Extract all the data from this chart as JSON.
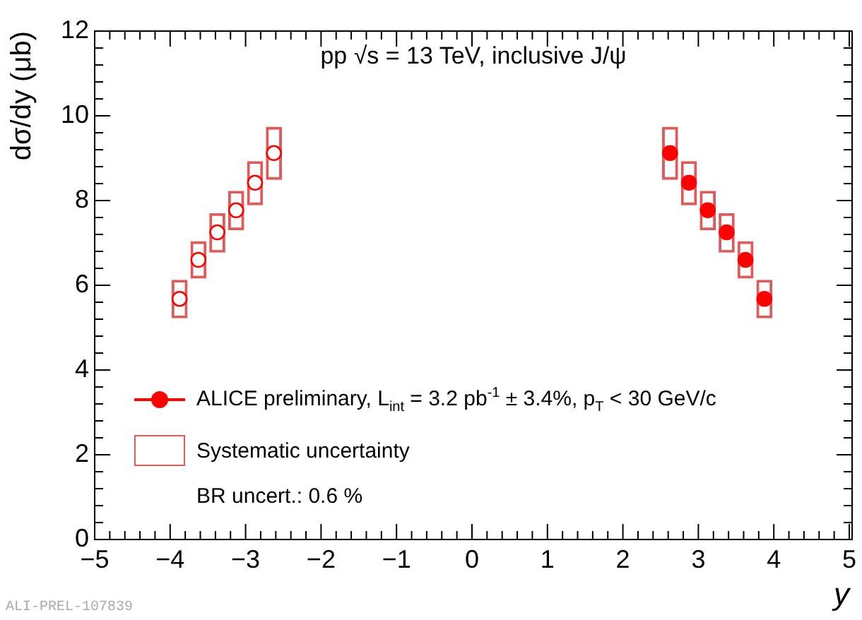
{
  "chart_data": {
    "type": "scatter",
    "title": "pp √s = 13 TeV, inclusive J/ψ",
    "xlabel": "y",
    "ylabel": "dσ/dy (μb)",
    "annotations": [
      "BR uncert.: 0.6 %",
      "ALI-PREL-107839"
    ],
    "xlim": [
      -5,
      5
    ],
    "ylim": [
      0,
      12
    ],
    "xticks": [
      -5,
      {
        "value": -4.8,
        "label": null
      },
      {
        "value": -4.6,
        "label": null
      },
      {
        "value": -4.4,
        "label": null
      },
      {
        "value": -4.2,
        "label": null
      },
      -4,
      {
        "value": -3.8,
        "label": null
      },
      {
        "value": -3.6,
        "label": null
      },
      {
        "value": -3.4,
        "label": null
      },
      {
        "value": -3.2,
        "label": null
      },
      -3,
      {
        "value": -2.8,
        "label": null
      },
      {
        "value": -2.6,
        "label": null
      },
      {
        "value": -2.4,
        "label": null
      },
      {
        "value": -2.2,
        "label": null
      },
      -2,
      {
        "value": -1.8,
        "label": null
      },
      {
        "value": -1.6,
        "label": null
      },
      {
        "value": -1.4,
        "label": null
      },
      {
        "value": -1.2,
        "label": null
      },
      -1,
      {
        "value": -0.8,
        "label": null
      },
      {
        "value": -0.6,
        "label": null
      },
      {
        "value": -0.4,
        "label": null
      },
      {
        "value": -0.2,
        "label": null
      },
      0,
      {
        "value": 0.2,
        "label": null
      },
      {
        "value": 0.4,
        "label": null
      },
      {
        "value": 0.6,
        "label": null
      },
      {
        "value": 0.8,
        "label": null
      },
      1,
      {
        "value": 1.2,
        "label": null
      },
      {
        "value": 1.4,
        "label": null
      },
      {
        "value": 1.6,
        "label": null
      },
      {
        "value": 1.8,
        "label": null
      },
      2,
      {
        "value": 2.2,
        "label": null
      },
      {
        "value": 2.4,
        "label": null
      },
      {
        "value": 2.6,
        "label": null
      },
      {
        "value": 2.8,
        "label": null
      },
      3,
      {
        "value": 3.2,
        "label": null
      },
      {
        "value": 3.4,
        "label": null
      },
      {
        "value": 3.6,
        "label": null
      },
      {
        "value": 3.8,
        "label": null
      },
      4,
      {
        "value": 4.2,
        "label": null
      },
      {
        "value": 4.4,
        "label": null
      },
      {
        "value": 4.6,
        "label": null
      },
      {
        "value": 4.8,
        "label": null
      },
      5
    ],
    "yticks": [
      0,
      {
        "value": 0.4,
        "label": null
      },
      {
        "value": 0.8,
        "label": null
      },
      {
        "value": 1.2,
        "label": null
      },
      {
        "value": 1.6,
        "label": null
      },
      2,
      {
        "value": 2.4,
        "label": null
      },
      {
        "value": 2.8,
        "label": null
      },
      {
        "value": 3.2,
        "label": null
      },
      {
        "value": 3.6,
        "label": null
      },
      4,
      {
        "value": 4.4,
        "label": null
      },
      {
        "value": 4.8,
        "label": null
      },
      {
        "value": 5.2,
        "label": null
      },
      {
        "value": 5.6,
        "label": null
      },
      6,
      {
        "value": 6.4,
        "label": null
      },
      {
        "value": 6.8,
        "label": null
      },
      {
        "value": 7.2,
        "label": null
      },
      {
        "value": 7.6,
        "label": null
      },
      8,
      {
        "value": 8.4,
        "label": null
      },
      {
        "value": 8.8,
        "label": null
      },
      {
        "value": 9.2,
        "label": null
      },
      {
        "value": 9.6,
        "label": null
      },
      10,
      {
        "value": 10.4,
        "label": null
      },
      {
        "value": 10.8,
        "label": null
      },
      {
        "value": 11.2,
        "label": null
      },
      {
        "value": 11.6,
        "label": null
      },
      12
    ],
    "grid": false,
    "legend": "bottom left",
    "marker": "circle",
    "series": [
      {
        "name": "Systematic uncertainty",
        "type": "bar",
        "color": "#e05a5a",
        "x": [
          -3.875,
          -3.625,
          -3.375,
          -3.125,
          -2.875,
          -2.625,
          2.625,
          2.875,
          3.125,
          3.375,
          3.625,
          3.875
        ],
        "base": [
          5.23,
          6.17,
          6.78,
          7.31,
          7.9,
          8.5,
          8.5,
          7.9,
          7.31,
          6.78,
          6.17,
          5.23
        ],
        "values": [
          0.89,
          0.86,
          0.91,
          0.91,
          1.02,
          1.23,
          1.23,
          1.02,
          0.91,
          0.91,
          0.86,
          0.89
        ]
      },
      {
        "color": "#ff0000",
        "x": [
          -3.875,
          -3.625,
          -3.375,
          -3.125,
          -2.875,
          -2.625
        ],
        "values": [
          5.68,
          6.6,
          7.25,
          7.77,
          8.42,
          9.12
        ]
      },
      {
        "name": "ALICE preliminary, L$_{int}$ = 3.2 pb$^{-1}$ ± 3.4%, p$_{T}$ < 30 GeV/c",
        "color": "#ff0000",
        "x": [
          2.625,
          2.875,
          3.125,
          3.375,
          3.625,
          3.875
        ],
        "values": [
          9.12,
          8.42,
          7.77,
          7.25,
          6.6,
          5.68
        ]
      }
    ]
  }
}
